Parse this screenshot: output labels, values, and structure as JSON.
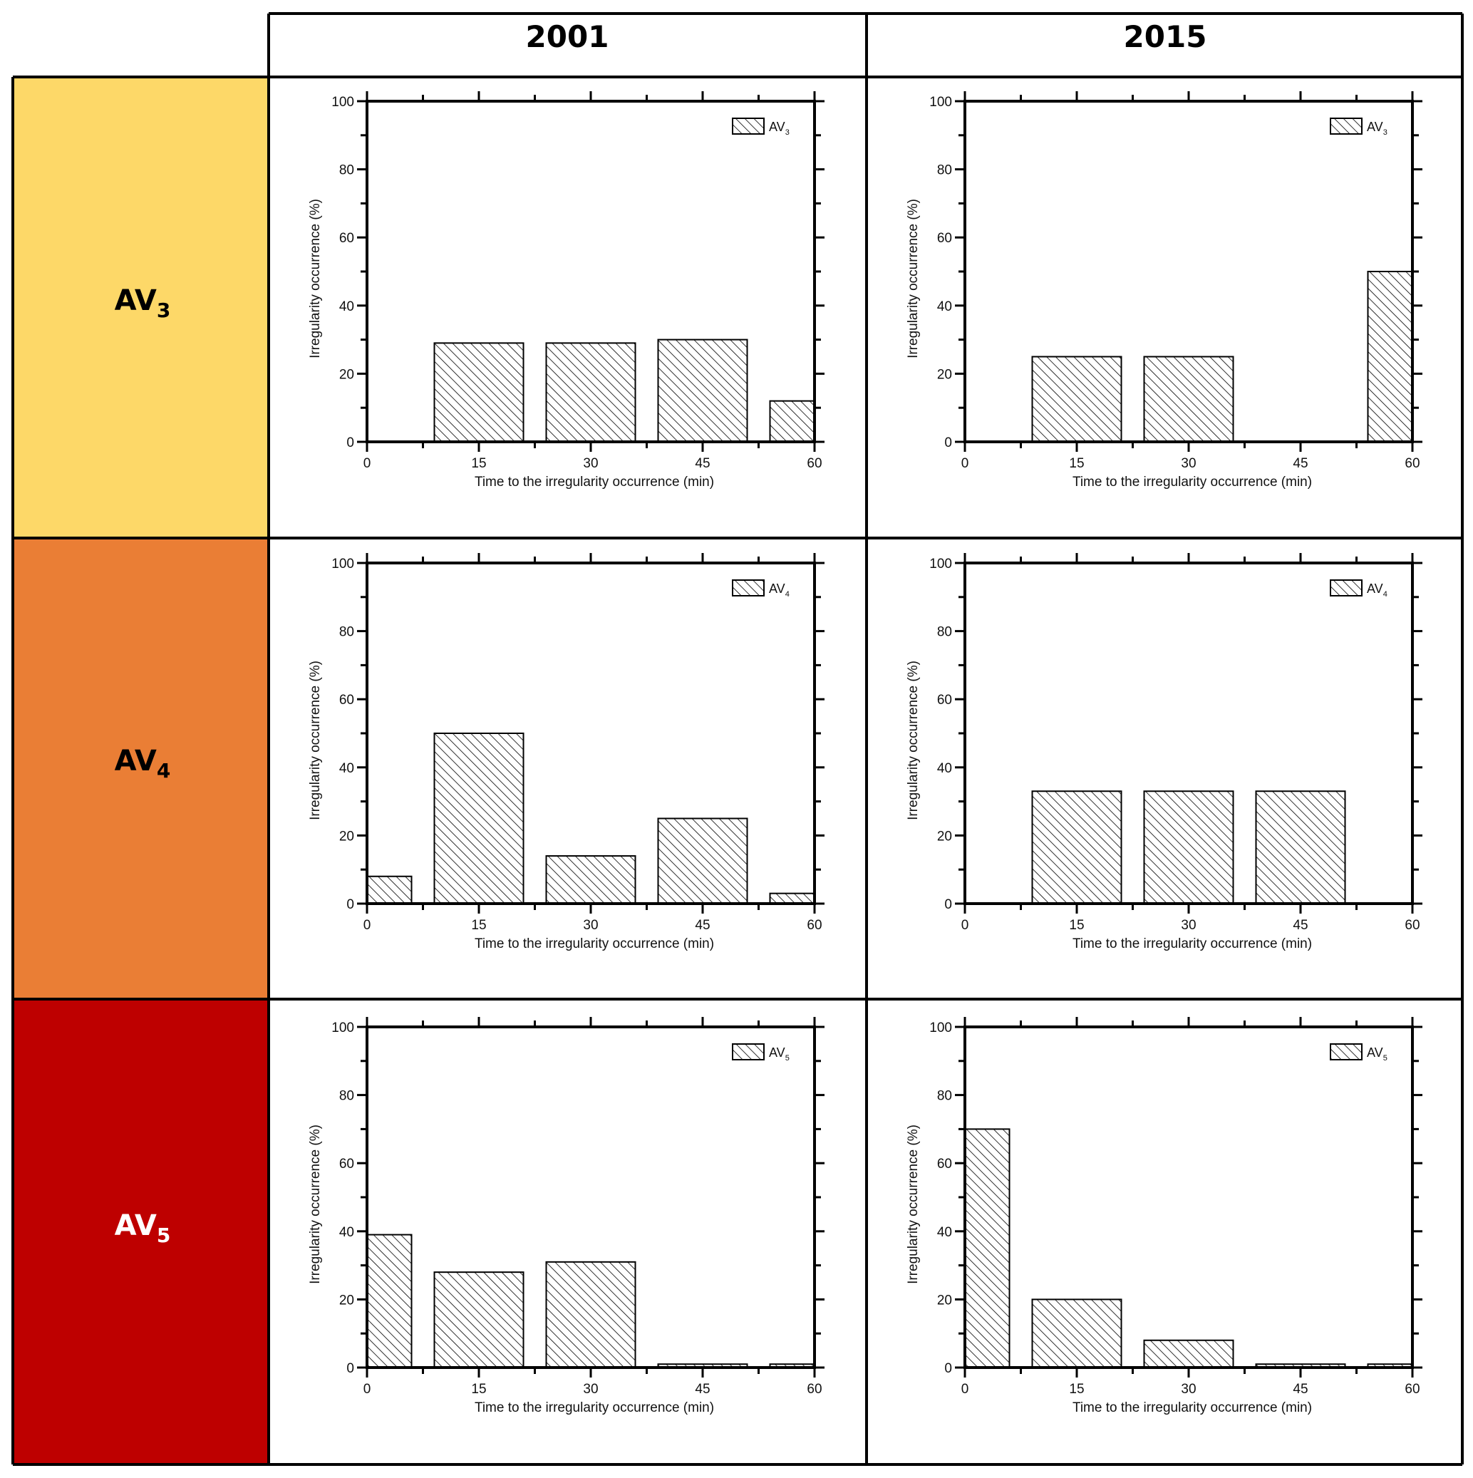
{
  "header": {
    "columns": [
      "2001",
      "2015"
    ]
  },
  "rows": [
    {
      "label_main": "AV",
      "label_sub": "3",
      "color": "#FDD868",
      "text_color": "#000000"
    },
    {
      "label_main": "AV",
      "label_sub": "4",
      "color": "#EA7E35",
      "text_color": "#000000"
    },
    {
      "label_main": "AV",
      "label_sub": "5",
      "color": "#BE0000",
      "text_color": "#FFFFFF"
    }
  ],
  "colors": {
    "bar_stroke": "#000000",
    "hatch": "#000000",
    "grid_border": "#000000"
  },
  "chart_data": [
    {
      "type": "bar",
      "row": "AV3",
      "column": "2001",
      "categories": [
        0,
        15,
        30,
        45,
        60
      ],
      "values": [
        0,
        29,
        29,
        30,
        12
      ],
      "legend": {
        "main": "AV",
        "sub": "3",
        "placement": "top-right"
      },
      "xlabel": "Time to the irregularity occurrence (min)",
      "ylabel": "Irregularity  occurrence (%)",
      "xlim": [
        0,
        60
      ],
      "ylim": [
        0,
        100
      ],
      "xticks": [
        0,
        15,
        30,
        45,
        60
      ],
      "yticks": [
        0,
        20,
        40,
        60,
        80,
        100
      ],
      "grid": false,
      "hatch": "diagonal"
    },
    {
      "type": "bar",
      "row": "AV3",
      "column": "2015",
      "categories": [
        0,
        15,
        30,
        45,
        60
      ],
      "values": [
        0,
        25,
        25,
        0,
        50
      ],
      "legend": {
        "main": "AV",
        "sub": "3",
        "placement": "top-right"
      },
      "xlabel": "Time to the irregularity occurrence (min)",
      "ylabel": "Irregularity  occurrence (%)",
      "xlim": [
        0,
        60
      ],
      "ylim": [
        0,
        100
      ],
      "xticks": [
        0,
        15,
        30,
        45,
        60
      ],
      "yticks": [
        0,
        20,
        40,
        60,
        80,
        100
      ],
      "grid": false,
      "hatch": "diagonal"
    },
    {
      "type": "bar",
      "row": "AV4",
      "column": "2001",
      "categories": [
        0,
        15,
        30,
        45,
        60
      ],
      "values": [
        8,
        50,
        14,
        25,
        3
      ],
      "legend": {
        "main": "AV",
        "sub": "4",
        "placement": "top-right"
      },
      "xlabel": "Time to the irregularity occurrence (min)",
      "ylabel": "Irregularity  occurrence (%)",
      "xlim": [
        0,
        60
      ],
      "ylim": [
        0,
        100
      ],
      "xticks": [
        0,
        15,
        30,
        45,
        60
      ],
      "yticks": [
        0,
        20,
        40,
        60,
        80,
        100
      ],
      "grid": false,
      "hatch": "diagonal"
    },
    {
      "type": "bar",
      "row": "AV4",
      "column": "2015",
      "categories": [
        0,
        15,
        30,
        45,
        60
      ],
      "values": [
        0,
        33,
        33,
        33,
        0
      ],
      "legend": {
        "main": "AV",
        "sub": "4",
        "placement": "top-right"
      },
      "xlabel": "Time to the irregularity occurrence (min)",
      "ylabel": "Irregularity  occurrence (%)",
      "xlim": [
        0,
        60
      ],
      "ylim": [
        0,
        100
      ],
      "xticks": [
        0,
        15,
        30,
        45,
        60
      ],
      "yticks": [
        0,
        20,
        40,
        60,
        80,
        100
      ],
      "grid": false,
      "hatch": "diagonal"
    },
    {
      "type": "bar",
      "row": "AV5",
      "column": "2001",
      "categories": [
        0,
        15,
        30,
        45,
        60
      ],
      "values": [
        39,
        28,
        31,
        1,
        1
      ],
      "legend": {
        "main": "AV",
        "sub": "5",
        "placement": "top-right"
      },
      "xlabel": "Time to the irregularity occurrence (min)",
      "ylabel": "Irregularity  occurrence (%)",
      "xlim": [
        0,
        60
      ],
      "ylim": [
        0,
        100
      ],
      "xticks": [
        0,
        15,
        30,
        45,
        60
      ],
      "yticks": [
        0,
        20,
        40,
        60,
        80,
        100
      ],
      "grid": false,
      "hatch": "diagonal"
    },
    {
      "type": "bar",
      "row": "AV5",
      "column": "2015",
      "categories": [
        0,
        15,
        30,
        45,
        60
      ],
      "values": [
        70,
        20,
        8,
        1,
        1
      ],
      "legend": {
        "main": "AV",
        "sub": "5",
        "placement": "top-right"
      },
      "xlabel": "Time to the irregularity occurrence (min)",
      "ylabel": "Irregularity  occurrence (%)",
      "xlim": [
        0,
        60
      ],
      "ylim": [
        0,
        100
      ],
      "xticks": [
        0,
        15,
        30,
        45,
        60
      ],
      "yticks": [
        0,
        20,
        40,
        60,
        80,
        100
      ],
      "grid": false,
      "hatch": "diagonal"
    }
  ]
}
